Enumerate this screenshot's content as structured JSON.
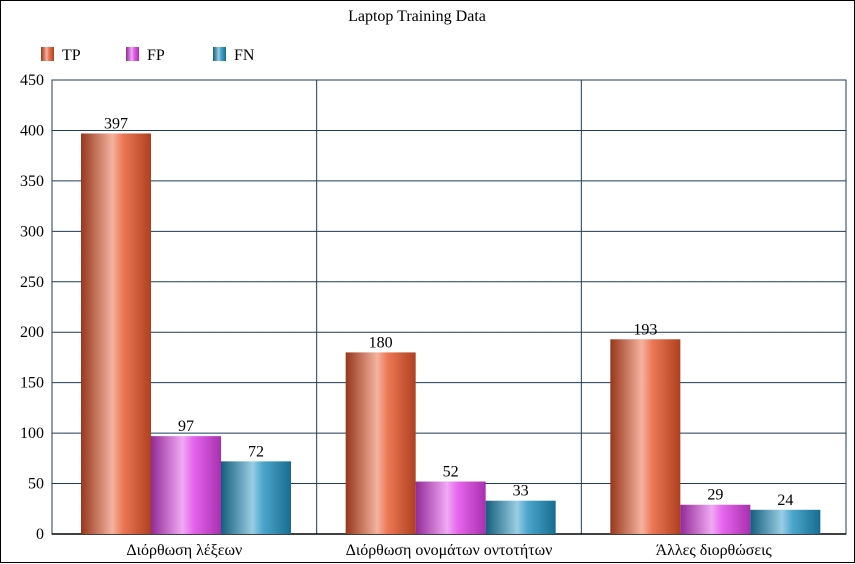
{
  "chart_data": {
    "type": "bar",
    "title": "Laptop Training Data",
    "categories": [
      "Διόρθωση λέξεων",
      "Διόρθωση ονομάτων οντοτήτων",
      "Άλλες διορθώσεις"
    ],
    "series": [
      {
        "name": "TP",
        "values": [
          397,
          180,
          193
        ],
        "color": "#e8552a"
      },
      {
        "name": "FP",
        "values": [
          97,
          52,
          29
        ],
        "color": "#e040e8"
      },
      {
        "name": "FN",
        "values": [
          72,
          33,
          24
        ],
        "color": "#1e90c0"
      }
    ],
    "ylim": [
      0,
      450
    ],
    "yticks": [
      0,
      50,
      100,
      150,
      200,
      250,
      300,
      350,
      400,
      450
    ],
    "grid": true,
    "legend": "top-left"
  }
}
